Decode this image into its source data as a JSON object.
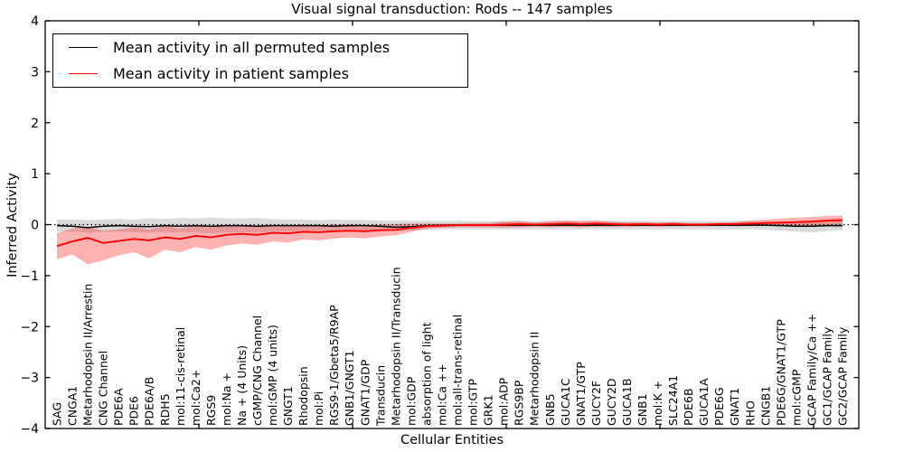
{
  "figure": {
    "title": "Visual signal transduction: Rods -- 147 samples",
    "xlabel": "Cellular Entities",
    "ylabel": "Inferred Activity"
  },
  "legend": {
    "entries": [
      {
        "label": "Mean activity in all permuted samples",
        "color": "#000000"
      },
      {
        "label": "Mean activity in patient samples",
        "color": "#ff0000"
      }
    ],
    "position": "upper left"
  },
  "chart_data": {
    "type": "line",
    "title": "Visual signal transduction: Rods -- 147 samples",
    "xlabel": "Cellular Entities",
    "ylabel": "Inferred Activity",
    "ylim": [
      -4,
      4
    ],
    "ytick_labels": [
      "4",
      "3",
      "2",
      "1",
      "0",
      "−1",
      "−2",
      "−3",
      "−4"
    ],
    "ytick_values": [
      4,
      3,
      2,
      1,
      0,
      -1,
      -2,
      -3,
      -4
    ],
    "grid": false,
    "zero_line": {
      "y": 0,
      "style": "dotted",
      "color": "#000000"
    },
    "legend_position": "upper left",
    "categories": [
      "SAG",
      "CNGA1",
      "Metarhodopsin II/Arrestin",
      "CNG Channel",
      "PDE6A",
      "PDE6",
      "PDE6A/B",
      "RDH5",
      "mol:11-cis-retinal",
      "mol:Ca2+",
      "RGS9",
      "mol:Na +",
      "Na + (4 Units)",
      "cGMP/CNG Channel",
      "mol:GMP (4 units)",
      "GNGT1",
      "Rhodopsin",
      "mol:Pi",
      "RGS9-1/Gbeta5/R9AP",
      "GNB1/GNGT1",
      "GNAT1/GDP",
      "Transducin",
      "Metarhodopsin II/Transducin",
      "mol:GDP",
      "absorption of light",
      "mol:Ca ++",
      "mol:all-trans-retinal",
      "mol:GTP",
      "GRK1",
      "mol:ADP",
      "RGS9BP",
      "Metarhodopsin II",
      "GNB5",
      "GUCA1C",
      "GNAT1/GTP",
      "GUCY2F",
      "GUCY2D",
      "GUCA1B",
      "GNB1",
      "mol:K +",
      "SLC24A1",
      "PDE6B",
      "GUCA1A",
      "PDE6G",
      "GNAT1",
      "RHO",
      "CNGB1",
      "PDE6G/GNAT1/GTP",
      "mol:cGMP",
      "GCAP Family/Ca ++",
      "GC1/GCAP Family",
      "GC2/GCAP Family"
    ],
    "series": [
      {
        "name": "Mean activity in all permuted samples",
        "color": "#000000",
        "line_width": 1.5,
        "band_color": "#000000",
        "band_opacity": 0.14,
        "values": [
          -0.02,
          -0.03,
          -0.06,
          -0.03,
          -0.02,
          -0.03,
          -0.04,
          -0.02,
          -0.03,
          -0.02,
          -0.03,
          -0.02,
          -0.02,
          -0.03,
          -0.02,
          -0.02,
          -0.02,
          -0.02,
          -0.03,
          -0.02,
          -0.02,
          -0.03,
          -0.05,
          -0.04,
          -0.02,
          -0.01,
          -0.01,
          -0.01,
          -0.01,
          -0.01,
          -0.01,
          -0.01,
          -0.01,
          -0.01,
          -0.01,
          -0.01,
          -0.01,
          -0.01,
          -0.01,
          -0.01,
          -0.01,
          -0.01,
          -0.01,
          -0.01,
          -0.01,
          -0.01,
          -0.01,
          -0.02,
          -0.03,
          -0.03,
          -0.02,
          -0.02
        ],
        "band_upper": [
          0.1,
          0.1,
          0.09,
          0.1,
          0.11,
          0.1,
          0.12,
          0.11,
          0.13,
          0.12,
          0.14,
          0.12,
          0.12,
          0.13,
          0.11,
          0.1,
          0.1,
          0.09,
          0.1,
          0.09,
          0.09,
          0.08,
          0.08,
          0.08,
          0.07,
          0.07,
          0.07,
          0.07,
          0.07,
          0.07,
          0.07,
          0.07,
          0.07,
          0.07,
          0.07,
          0.07,
          0.07,
          0.07,
          0.07,
          0.07,
          0.07,
          0.07,
          0.07,
          0.07,
          0.07,
          0.07,
          0.07,
          0.06,
          0.06,
          0.06,
          0.07,
          0.09
        ],
        "band_lower": [
          -0.13,
          -0.14,
          -0.16,
          -0.14,
          -0.14,
          -0.15,
          -0.16,
          -0.14,
          -0.16,
          -0.15,
          -0.17,
          -0.15,
          -0.15,
          -0.16,
          -0.14,
          -0.13,
          -0.13,
          -0.12,
          -0.13,
          -0.12,
          -0.12,
          -0.12,
          -0.13,
          -0.12,
          -0.1,
          -0.09,
          -0.09,
          -0.09,
          -0.09,
          -0.09,
          -0.09,
          -0.09,
          -0.09,
          -0.09,
          -0.09,
          -0.09,
          -0.09,
          -0.09,
          -0.09,
          -0.09,
          -0.09,
          -0.09,
          -0.09,
          -0.09,
          -0.09,
          -0.09,
          -0.1,
          -0.12,
          -0.14,
          -0.15,
          -0.13,
          -0.1
        ]
      },
      {
        "name": "Mean activity in patient samples",
        "color": "#ff0000",
        "line_width": 1.9,
        "band_color": "#ff0000",
        "band_opacity": 0.3,
        "values": [
          -0.42,
          -0.33,
          -0.26,
          -0.36,
          -0.32,
          -0.28,
          -0.31,
          -0.25,
          -0.28,
          -0.22,
          -0.25,
          -0.2,
          -0.18,
          -0.2,
          -0.16,
          -0.17,
          -0.14,
          -0.15,
          -0.13,
          -0.12,
          -0.13,
          -0.11,
          -0.1,
          -0.06,
          -0.03,
          -0.02,
          -0.01,
          -0.01,
          -0.01,
          0.0,
          0.01,
          0.0,
          0.01,
          0.02,
          0.01,
          0.02,
          0.01,
          0.0,
          0.01,
          0.0,
          0.01,
          0.0,
          0.0,
          0.01,
          0.01,
          0.02,
          0.03,
          0.04,
          0.05,
          0.06,
          0.08,
          0.09
        ],
        "band_upper": [
          -0.16,
          -0.08,
          -0.04,
          -0.12,
          -0.09,
          -0.05,
          -0.09,
          -0.03,
          -0.07,
          -0.02,
          -0.05,
          -0.01,
          -0.02,
          -0.04,
          -0.01,
          -0.03,
          0.0,
          -0.02,
          0.0,
          0.0,
          -0.01,
          0.0,
          0.01,
          0.02,
          0.02,
          0.02,
          0.02,
          0.03,
          0.03,
          0.06,
          0.07,
          0.04,
          0.07,
          0.08,
          0.07,
          0.08,
          0.06,
          0.04,
          0.05,
          0.04,
          0.05,
          0.03,
          0.03,
          0.04,
          0.05,
          0.08,
          0.1,
          0.12,
          0.14,
          0.15,
          0.17,
          0.18
        ],
        "band_lower": [
          -0.68,
          -0.58,
          -0.78,
          -0.7,
          -0.6,
          -0.54,
          -0.66,
          -0.49,
          -0.54,
          -0.44,
          -0.49,
          -0.41,
          -0.37,
          -0.39,
          -0.33,
          -0.35,
          -0.29,
          -0.31,
          -0.27,
          -0.25,
          -0.27,
          -0.23,
          -0.21,
          -0.14,
          -0.08,
          -0.06,
          -0.05,
          -0.05,
          -0.05,
          -0.06,
          -0.05,
          -0.04,
          -0.05,
          -0.04,
          -0.05,
          -0.04,
          -0.04,
          -0.04,
          -0.03,
          -0.04,
          -0.03,
          -0.03,
          -0.03,
          -0.02,
          -0.03,
          -0.02,
          -0.02,
          -0.03,
          -0.02,
          -0.02,
          -0.01,
          0.0
        ]
      }
    ]
  }
}
